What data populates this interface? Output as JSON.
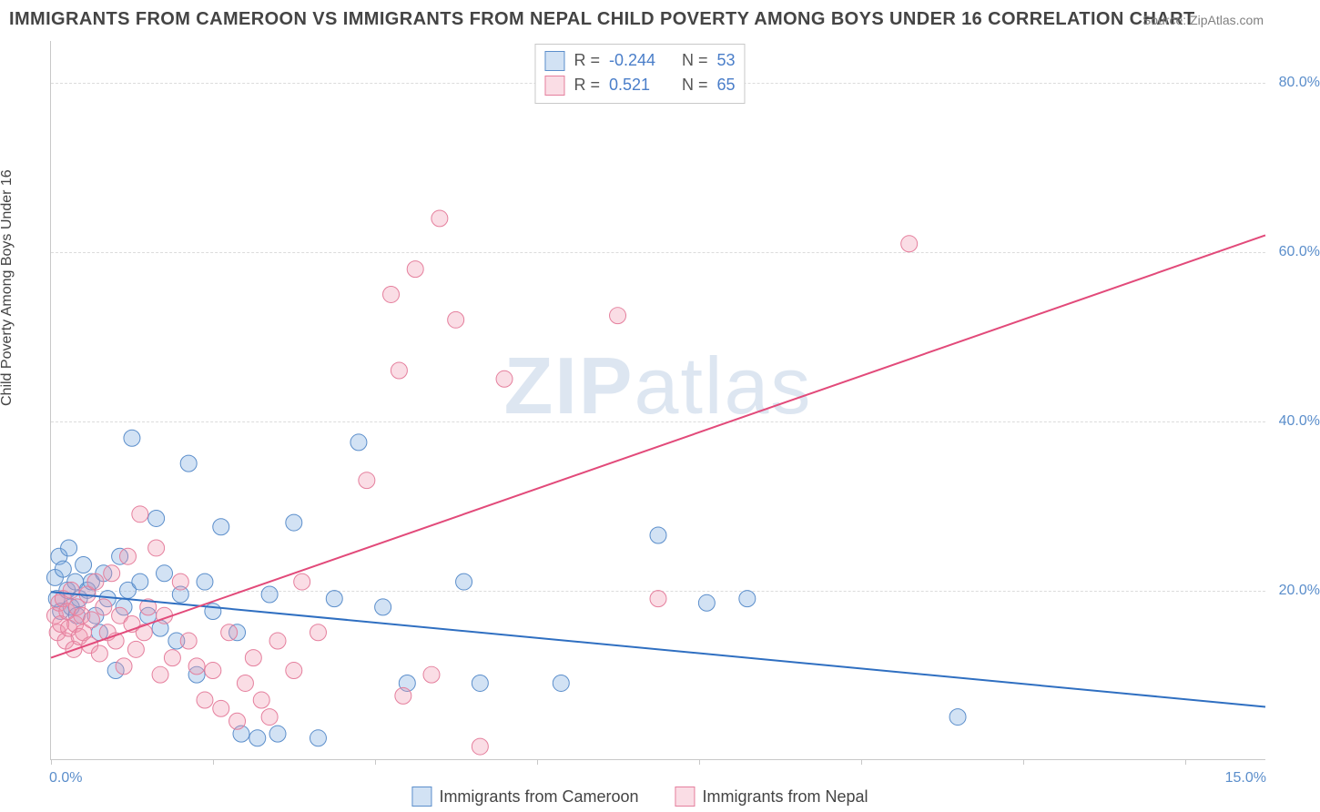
{
  "title": "IMMIGRANTS FROM CAMEROON VS IMMIGRANTS FROM NEPAL CHILD POVERTY AMONG BOYS UNDER 16 CORRELATION CHART",
  "source_label": "Source: ",
  "source_value": "ZipAtlas.com",
  "ylabel": "Child Poverty Among Boys Under 16",
  "watermark_part1": "ZIP",
  "watermark_part2": "atlas",
  "xaxis": {
    "min": 0.0,
    "max": 15.0,
    "ticks": [
      0.0,
      15.0
    ],
    "tick_labels": [
      "0.0%",
      "15.0%"
    ],
    "minor_tick_step": 2.0
  },
  "yaxis": {
    "min": 0.0,
    "max": 85.0,
    "grid_values": [
      20.0,
      40.0,
      60.0,
      80.0
    ],
    "grid_labels": [
      "20.0%",
      "40.0%",
      "60.0%",
      "80.0%"
    ]
  },
  "series": [
    {
      "key": "cameroon",
      "label": "Immigrants from Cameroon",
      "fill": "rgba(115,165,220,0.32)",
      "stroke": "#5b8ecb",
      "trend_color": "#2f6fc1",
      "trend_width": 2,
      "R_label": "R = ",
      "R": "-0.244",
      "N_label": "N = ",
      "N": "53",
      "trend": {
        "x1": 0.0,
        "y1": 19.8,
        "x2": 15.0,
        "y2": 6.2
      },
      "marker_r": 9,
      "points": [
        [
          0.05,
          21.5
        ],
        [
          0.07,
          19.0
        ],
        [
          0.1,
          24.0
        ],
        [
          0.12,
          17.5
        ],
        [
          0.15,
          22.5
        ],
        [
          0.2,
          20.0
        ],
        [
          0.22,
          25.0
        ],
        [
          0.25,
          18.0
        ],
        [
          0.3,
          21.0
        ],
        [
          0.32,
          17.0
        ],
        [
          0.35,
          19.0
        ],
        [
          0.4,
          23.0
        ],
        [
          0.45,
          20.0
        ],
        [
          0.5,
          21.0
        ],
        [
          0.55,
          17.0
        ],
        [
          0.6,
          15.0
        ],
        [
          0.65,
          22.0
        ],
        [
          0.7,
          19.0
        ],
        [
          0.8,
          10.5
        ],
        [
          0.85,
          24.0
        ],
        [
          0.9,
          18.0
        ],
        [
          0.95,
          20.0
        ],
        [
          1.0,
          38.0
        ],
        [
          1.1,
          21.0
        ],
        [
          1.2,
          17.0
        ],
        [
          1.3,
          28.5
        ],
        [
          1.35,
          15.5
        ],
        [
          1.4,
          22.0
        ],
        [
          1.55,
          14.0
        ],
        [
          1.6,
          19.5
        ],
        [
          1.7,
          35.0
        ],
        [
          1.8,
          10.0
        ],
        [
          1.9,
          21.0
        ],
        [
          2.0,
          17.5
        ],
        [
          2.1,
          27.5
        ],
        [
          2.3,
          15.0
        ],
        [
          2.35,
          3.0
        ],
        [
          2.55,
          2.5
        ],
        [
          2.7,
          19.5
        ],
        [
          2.8,
          3.0
        ],
        [
          3.0,
          28.0
        ],
        [
          3.3,
          2.5
        ],
        [
          3.5,
          19.0
        ],
        [
          3.8,
          37.5
        ],
        [
          4.1,
          18.0
        ],
        [
          4.4,
          9.0
        ],
        [
          5.1,
          21.0
        ],
        [
          5.3,
          9.0
        ],
        [
          6.3,
          9.0
        ],
        [
          7.5,
          26.5
        ],
        [
          8.1,
          18.5
        ],
        [
          8.6,
          19.0
        ],
        [
          11.2,
          5.0
        ]
      ]
    },
    {
      "key": "nepal",
      "label": "Immigrants from Nepal",
      "fill": "rgba(240,150,175,0.32)",
      "stroke": "#e57f9d",
      "trend_color": "#e24a7a",
      "trend_width": 2,
      "R_label": "R = ",
      "R": "0.521",
      "N_label": "N = ",
      "N": "65",
      "trend": {
        "x1": 0.0,
        "y1": 12.0,
        "x2": 15.0,
        "y2": 62.0
      },
      "marker_r": 9,
      "points": [
        [
          0.05,
          17.0
        ],
        [
          0.08,
          15.0
        ],
        [
          0.1,
          18.5
        ],
        [
          0.12,
          16.0
        ],
        [
          0.15,
          19.0
        ],
        [
          0.18,
          14.0
        ],
        [
          0.2,
          17.5
        ],
        [
          0.22,
          15.5
        ],
        [
          0.25,
          20.0
        ],
        [
          0.28,
          13.0
        ],
        [
          0.3,
          16.0
        ],
        [
          0.32,
          18.0
        ],
        [
          0.35,
          14.5
        ],
        [
          0.38,
          17.0
        ],
        [
          0.4,
          15.0
        ],
        [
          0.45,
          19.5
        ],
        [
          0.48,
          13.5
        ],
        [
          0.5,
          16.5
        ],
        [
          0.55,
          21.0
        ],
        [
          0.6,
          12.5
        ],
        [
          0.65,
          18.0
        ],
        [
          0.7,
          15.0
        ],
        [
          0.75,
          22.0
        ],
        [
          0.8,
          14.0
        ],
        [
          0.85,
          17.0
        ],
        [
          0.9,
          11.0
        ],
        [
          0.95,
          24.0
        ],
        [
          1.0,
          16.0
        ],
        [
          1.05,
          13.0
        ],
        [
          1.1,
          29.0
        ],
        [
          1.15,
          15.0
        ],
        [
          1.2,
          18.0
        ],
        [
          1.3,
          25.0
        ],
        [
          1.35,
          10.0
        ],
        [
          1.4,
          17.0
        ],
        [
          1.5,
          12.0
        ],
        [
          1.6,
          21.0
        ],
        [
          1.7,
          14.0
        ],
        [
          1.8,
          11.0
        ],
        [
          1.9,
          7.0
        ],
        [
          2.0,
          10.5
        ],
        [
          2.1,
          6.0
        ],
        [
          2.2,
          15.0
        ],
        [
          2.3,
          4.5
        ],
        [
          2.4,
          9.0
        ],
        [
          2.5,
          12.0
        ],
        [
          2.6,
          7.0
        ],
        [
          2.7,
          5.0
        ],
        [
          2.8,
          14.0
        ],
        [
          3.0,
          10.5
        ],
        [
          3.1,
          21.0
        ],
        [
          3.3,
          15.0
        ],
        [
          3.9,
          33.0
        ],
        [
          4.2,
          55.0
        ],
        [
          4.3,
          46.0
        ],
        [
          4.35,
          7.5
        ],
        [
          4.5,
          58.0
        ],
        [
          4.7,
          10.0
        ],
        [
          4.8,
          64.0
        ],
        [
          5.0,
          52.0
        ],
        [
          5.3,
          1.5
        ],
        [
          5.6,
          45.0
        ],
        [
          7.0,
          52.5
        ],
        [
          7.5,
          19.0
        ],
        [
          10.6,
          61.0
        ]
      ]
    }
  ],
  "colors": {
    "axis": "#c8c8c8",
    "grid": "#dcdcdc",
    "tick_text": "#5b8ecb",
    "title_text": "#444444",
    "source_text": "#808080",
    "background": "#ffffff"
  },
  "fontsizes": {
    "title": 20,
    "axis_label": 16,
    "tick": 16,
    "legend": 18,
    "watermark": 88
  }
}
